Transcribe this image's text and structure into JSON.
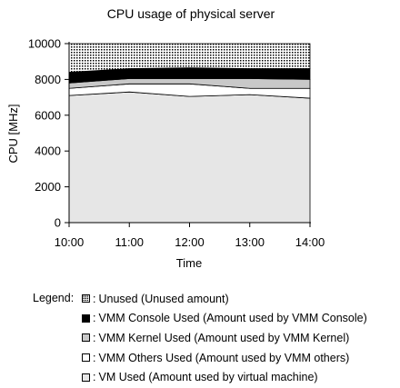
{
  "chart_data": {
    "type": "area",
    "stacked": true,
    "title": "CPU usage of physical server",
    "xlabel": "Time",
    "ylabel": "CPU [MHz]",
    "categories": [
      "10:00",
      "11:00",
      "12:00",
      "13:00",
      "14:00"
    ],
    "yticks": [
      0,
      2000,
      4000,
      6000,
      8000,
      10000
    ],
    "ylim": [
      0,
      10000
    ],
    "grid": false,
    "series": [
      {
        "name": "VM Used",
        "legend_label": "VM Used (Amount used by virtual machine)",
        "fill": "#e6e6e6",
        "pattern": "solid",
        "values": [
          7100,
          7300,
          7050,
          7150,
          6950
        ]
      },
      {
        "name": "VMM Others Used",
        "legend_label": "VMM Others Used (Amount used by VMM others)",
        "fill": "#ffffff",
        "pattern": "solid",
        "values": [
          400,
          450,
          700,
          350,
          550
        ]
      },
      {
        "name": "VMM Kernel Used",
        "legend_label": "VMM Kernel Used (Amount used by VMM Kernel)",
        "fill": "#c8c8c8",
        "pattern": "solid",
        "values": [
          300,
          300,
          300,
          550,
          500
        ]
      },
      {
        "name": "VMM Console Used",
        "legend_label": "VMM Console Used (Amount used by VMM Console)",
        "fill": "#000000",
        "pattern": "solid",
        "values": [
          600,
          550,
          600,
          550,
          600
        ]
      },
      {
        "name": "Unused",
        "legend_label": "Unused (Unused amount)",
        "fill": "#ffffff",
        "pattern": "dots",
        "values": [
          1600,
          1400,
          1350,
          1400,
          1400
        ]
      }
    ]
  },
  "legend": {
    "title": "Legend:",
    "prefix": ":",
    "order": [
      "Unused",
      "VMM Console Used",
      "VMM Kernel Used",
      "VMM Others Used",
      "VM Used"
    ]
  }
}
